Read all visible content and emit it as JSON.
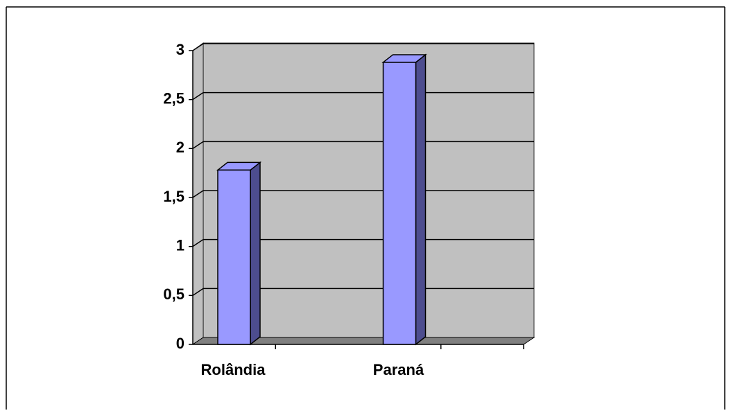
{
  "chart_data": {
    "type": "bar3d",
    "categories": [
      "Rolândia",
      "Paraná"
    ],
    "values": [
      1.78,
      2.88
    ],
    "color": "#9999ff",
    "ylim": [
      0,
      3
    ],
    "yticks": [
      0,
      {
        "value": 0.5,
        "label": "0,5"
      },
      1,
      {
        "value": 1.5,
        "label": "1,5"
      },
      2,
      {
        "value": 2.5,
        "label": "2,5"
      },
      3
    ],
    "grid": true
  }
}
